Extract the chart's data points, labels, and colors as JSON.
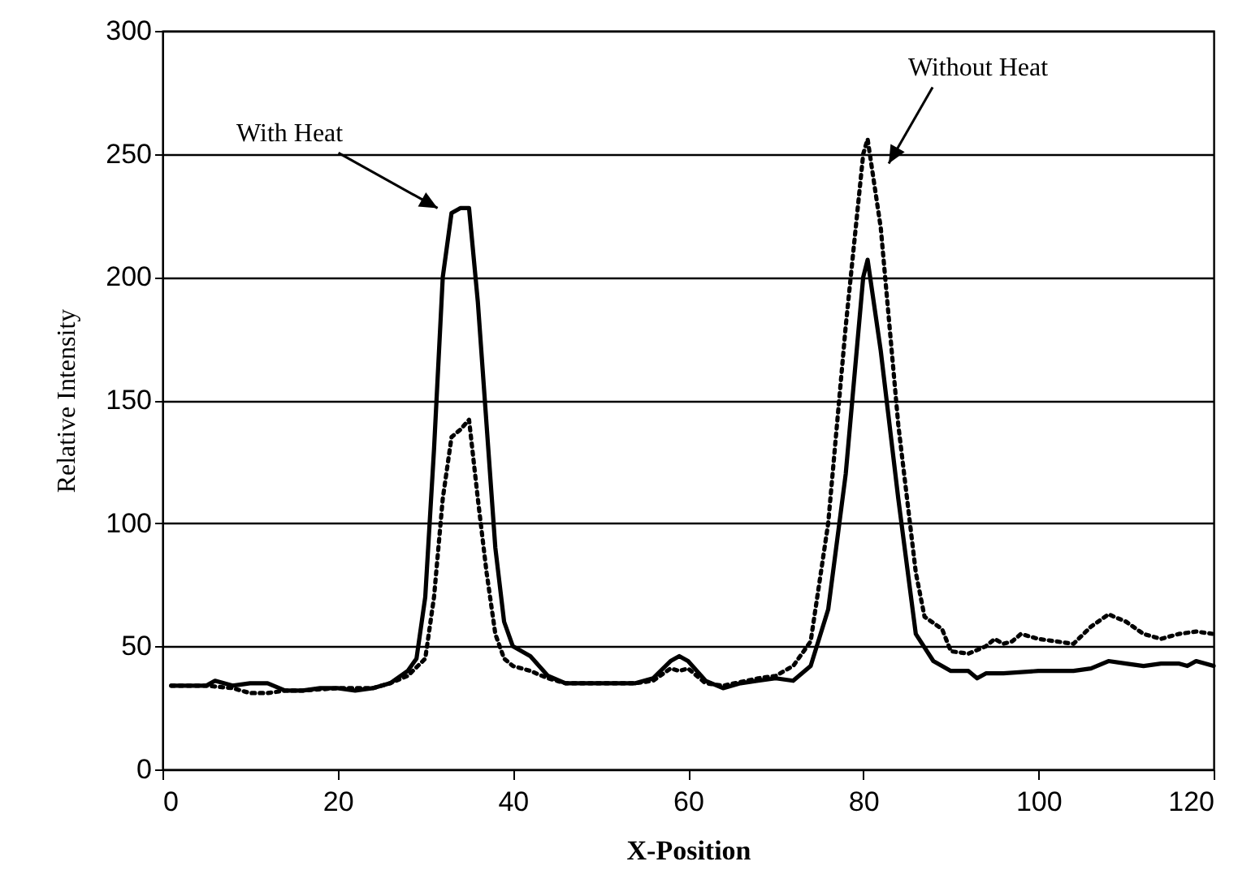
{
  "chart_data": {
    "type": "line",
    "xlabel": "X-Position",
    "ylabel": "Relative Intensity",
    "xlim": [
      0,
      120
    ],
    "xticks": [
      0,
      20,
      40,
      60,
      80,
      100,
      120
    ],
    "ylim": [
      0,
      300
    ],
    "yticks": [
      0,
      50,
      100,
      150,
      200,
      250,
      300
    ],
    "grid": "y",
    "series": [
      {
        "name": "With Heat",
        "color": "#000000",
        "line_style": "solid",
        "x": [
          1,
          3,
          5,
          6,
          8,
          10,
          12,
          14,
          16,
          18,
          20,
          22,
          24,
          26,
          28,
          29,
          30,
          31,
          32,
          33,
          34,
          35,
          36,
          37,
          38,
          39,
          40,
          42,
          44,
          46,
          50,
          54,
          56,
          58,
          59,
          60,
          62,
          64,
          66,
          68,
          70,
          72,
          74,
          76,
          78,
          80,
          80.5,
          82,
          84,
          86,
          88,
          90,
          92,
          93,
          94,
          96,
          100,
          104,
          106,
          108,
          110,
          112,
          114,
          116,
          117,
          118,
          120
        ],
        "values": [
          34,
          34,
          34,
          36,
          34,
          35,
          35,
          32,
          32,
          33,
          33,
          32,
          33,
          35,
          40,
          45,
          70,
          130,
          200,
          226,
          228,
          228,
          190,
          140,
          90,
          60,
          50,
          46,
          38,
          35,
          35,
          35,
          37,
          44,
          46,
          44,
          36,
          33,
          35,
          36,
          37,
          36,
          42,
          65,
          120,
          200,
          207,
          170,
          110,
          55,
          44,
          40,
          40,
          37,
          39,
          39,
          40,
          40,
          41,
          44,
          43,
          42,
          43,
          43,
          42,
          44,
          42
        ]
      },
      {
        "name": "Without Heat",
        "color": "#000000",
        "line_style": "dotted",
        "x": [
          1,
          5,
          8,
          10,
          12,
          14,
          16,
          20,
          24,
          26,
          28,
          30,
          31,
          32,
          33,
          34,
          35,
          36,
          37,
          38,
          39,
          40,
          42,
          44,
          46,
          54,
          56,
          58,
          59,
          60,
          62,
          64,
          68,
          70,
          72,
          74,
          76,
          78,
          80,
          80.5,
          82,
          84,
          86,
          87,
          89,
          90,
          92,
          94,
          95,
          96,
          97,
          98,
          100,
          102,
          104,
          106,
          108,
          110,
          112,
          114,
          116,
          118,
          120
        ],
        "values": [
          34,
          34,
          33,
          31,
          31,
          32,
          32,
          33,
          33,
          35,
          38,
          45,
          70,
          110,
          135,
          138,
          142,
          110,
          80,
          55,
          45,
          42,
          40,
          37,
          35,
          35,
          36,
          41,
          40,
          41,
          35,
          34,
          37,
          38,
          42,
          52,
          100,
          180,
          250,
          256,
          220,
          140,
          80,
          62,
          57,
          48,
          47,
          50,
          53,
          51,
          52,
          55,
          53,
          52,
          51,
          58,
          63,
          60,
          55,
          53,
          55,
          56,
          55
        ]
      }
    ]
  }
}
